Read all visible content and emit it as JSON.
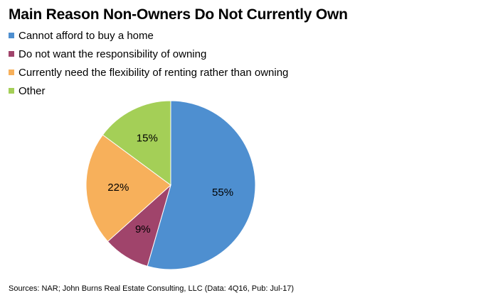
{
  "chart_data": {
    "type": "pie",
    "title": "Main Reason Non-Owners Do Not Currently Own",
    "categories": [
      "Cannot afford to buy a home",
      "Do not want the responsibility of owning",
      "Currently need the flexibility of renting rather than owning",
      "Other"
    ],
    "values": [
      55,
      9,
      22,
      15
    ],
    "data_labels": [
      "55%",
      "9%",
      "22%",
      "15%"
    ],
    "colors": [
      "#4e8fd0",
      "#a0446b",
      "#f7b05b",
      "#a4cf57"
    ],
    "legend_position": "top-left",
    "start_angle": "12 o'clock",
    "direction": "clockwise"
  },
  "source": "Sources: NAR; John Burns Real Estate Consulting, LLC (Data: 4Q16, Pub: Jul-17)"
}
